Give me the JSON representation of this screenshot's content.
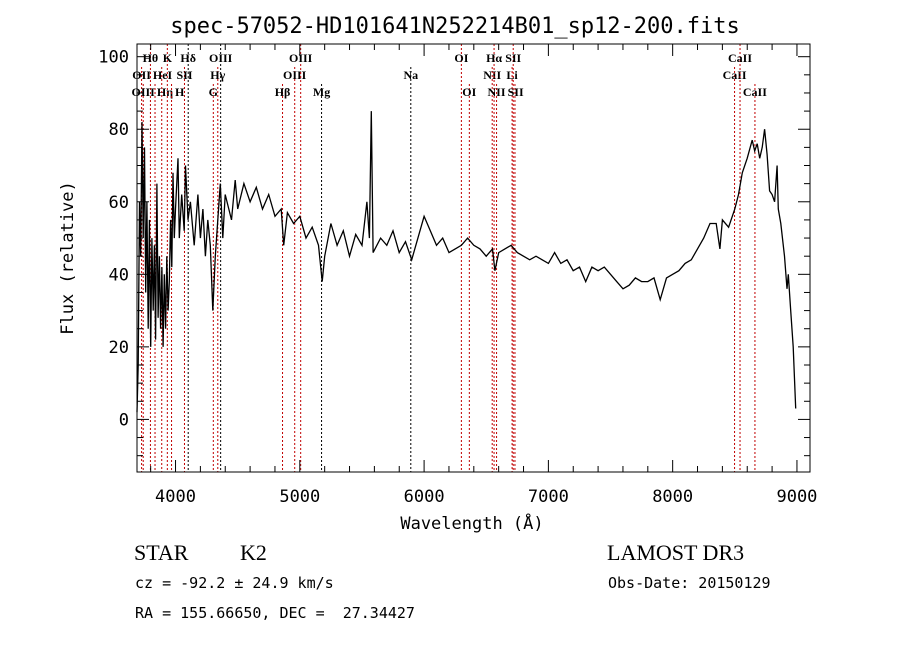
{
  "chart_data": {
    "type": "line",
    "title": "spec-57052-HD101641N252214B01_sp12-200.fits",
    "xlabel": "Wavelength (Å)",
    "ylabel": "Flux (relative)",
    "xlim": [
      3690,
      9105
    ],
    "ylim": [
      -14.5,
      103.5
    ],
    "xticks": [
      4000,
      5000,
      6000,
      7000,
      8000,
      9000
    ],
    "yticks": [
      0,
      20,
      40,
      60,
      80,
      100
    ],
    "grid": false,
    "series": [
      {
        "name": "spectrum",
        "color": "#000000",
        "points": [
          [
            3690,
            2
          ],
          [
            3700,
            15
          ],
          [
            3710,
            60
          ],
          [
            3720,
            45
          ],
          [
            3730,
            82
          ],
          [
            3740,
            50
          ],
          [
            3750,
            75
          ],
          [
            3760,
            35
          ],
          [
            3770,
            60
          ],
          [
            3780,
            25
          ],
          [
            3790,
            55
          ],
          [
            3800,
            20
          ],
          [
            3810,
            50
          ],
          [
            3820,
            30
          ],
          [
            3830,
            48
          ],
          [
            3840,
            22
          ],
          [
            3850,
            65
          ],
          [
            3860,
            28
          ],
          [
            3870,
            45
          ],
          [
            3880,
            25
          ],
          [
            3890,
            42
          ],
          [
            3900,
            20
          ],
          [
            3910,
            40
          ],
          [
            3920,
            25
          ],
          [
            3930,
            45
          ],
          [
            3940,
            30
          ],
          [
            3950,
            38
          ],
          [
            3960,
            55
          ],
          [
            3970,
            42
          ],
          [
            3980,
            68
          ],
          [
            3990,
            50
          ],
          [
            4000,
            58
          ],
          [
            4020,
            72
          ],
          [
            4030,
            50
          ],
          [
            4050,
            62
          ],
          [
            4070,
            52
          ],
          [
            4080,
            70
          ],
          [
            4100,
            55
          ],
          [
            4120,
            60
          ],
          [
            4150,
            48
          ],
          [
            4180,
            62
          ],
          [
            4200,
            50
          ],
          [
            4220,
            58
          ],
          [
            4240,
            45
          ],
          [
            4260,
            55
          ],
          [
            4280,
            48
          ],
          [
            4300,
            30
          ],
          [
            4320,
            45
          ],
          [
            4340,
            55
          ],
          [
            4360,
            65
          ],
          [
            4380,
            50
          ],
          [
            4400,
            62
          ],
          [
            4450,
            55
          ],
          [
            4480,
            66
          ],
          [
            4500,
            58
          ],
          [
            4550,
            65
          ],
          [
            4600,
            60
          ],
          [
            4650,
            64
          ],
          [
            4700,
            58
          ],
          [
            4750,
            62
          ],
          [
            4800,
            56
          ],
          [
            4850,
            58
          ],
          [
            4870,
            48
          ],
          [
            4900,
            57
          ],
          [
            4950,
            54
          ],
          [
            5000,
            56
          ],
          [
            5050,
            50
          ],
          [
            5100,
            53
          ],
          [
            5150,
            48
          ],
          [
            5180,
            38
          ],
          [
            5200,
            45
          ],
          [
            5250,
            54
          ],
          [
            5300,
            48
          ],
          [
            5350,
            52
          ],
          [
            5400,
            45
          ],
          [
            5450,
            51
          ],
          [
            5500,
            48
          ],
          [
            5540,
            60
          ],
          [
            5560,
            50
          ],
          [
            5575,
            85
          ],
          [
            5590,
            46
          ],
          [
            5650,
            50
          ],
          [
            5700,
            48
          ],
          [
            5750,
            52
          ],
          [
            5800,
            46
          ],
          [
            5850,
            49
          ],
          [
            5900,
            44
          ],
          [
            5950,
            50
          ],
          [
            6000,
            56
          ],
          [
            6050,
            52
          ],
          [
            6100,
            48
          ],
          [
            6150,
            50
          ],
          [
            6200,
            46
          ],
          [
            6250,
            47
          ],
          [
            6300,
            48
          ],
          [
            6350,
            50
          ],
          [
            6400,
            48
          ],
          [
            6450,
            47
          ],
          [
            6500,
            45
          ],
          [
            6550,
            47
          ],
          [
            6570,
            41
          ],
          [
            6600,
            46
          ],
          [
            6650,
            47
          ],
          [
            6700,
            48
          ],
          [
            6750,
            46
          ],
          [
            6800,
            45
          ],
          [
            6850,
            44
          ],
          [
            6900,
            45
          ],
          [
            6950,
            44
          ],
          [
            7000,
            43
          ],
          [
            7050,
            46
          ],
          [
            7100,
            43
          ],
          [
            7150,
            44
          ],
          [
            7200,
            41
          ],
          [
            7250,
            42
          ],
          [
            7300,
            38
          ],
          [
            7350,
            42
          ],
          [
            7400,
            41
          ],
          [
            7450,
            42
          ],
          [
            7500,
            40
          ],
          [
            7550,
            38
          ],
          [
            7600,
            36
          ],
          [
            7650,
            37
          ],
          [
            7700,
            39
          ],
          [
            7750,
            38
          ],
          [
            7800,
            38
          ],
          [
            7850,
            39
          ],
          [
            7900,
            33
          ],
          [
            7950,
            39
          ],
          [
            8000,
            40
          ],
          [
            8050,
            41
          ],
          [
            8100,
            43
          ],
          [
            8150,
            44
          ],
          [
            8200,
            47
          ],
          [
            8250,
            50
          ],
          [
            8300,
            54
          ],
          [
            8350,
            54
          ],
          [
            8380,
            47
          ],
          [
            8400,
            55
          ],
          [
            8450,
            53
          ],
          [
            8500,
            58
          ],
          [
            8530,
            62
          ],
          [
            8560,
            68
          ],
          [
            8600,
            72
          ],
          [
            8640,
            77
          ],
          [
            8660,
            74
          ],
          [
            8680,
            76
          ],
          [
            8700,
            72
          ],
          [
            8720,
            75
          ],
          [
            8740,
            80
          ],
          [
            8760,
            73
          ],
          [
            8780,
            63
          ],
          [
            8800,
            62
          ],
          [
            8820,
            60
          ],
          [
            8840,
            70
          ],
          [
            8850,
            58
          ],
          [
            8870,
            54
          ],
          [
            8900,
            45
          ],
          [
            8920,
            36
          ],
          [
            8930,
            40
          ],
          [
            8950,
            30
          ],
          [
            8970,
            20
          ],
          [
            8990,
            3
          ]
        ]
      }
    ],
    "lines": [
      {
        "label": "OII",
        "wavelength": 3727,
        "row": 2,
        "color": "#c00000"
      },
      {
        "label": "OIII",
        "wavelength": 3740,
        "row": 3,
        "color": "#c00000"
      },
      {
        "label": "Hθ",
        "wavelength": 3798,
        "row": 1,
        "color": "#c00000"
      },
      {
        "label": "Hη",
        "wavelength": 3835,
        "row": 3,
        "color": "#c00000"
      },
      {
        "label": "HeI",
        "wavelength": 3889,
        "row": 2,
        "color": "#c00000"
      },
      {
        "label": "K",
        "wavelength": 3934,
        "row": 1,
        "color": "#c00000"
      },
      {
        "label": "H",
        "wavelength": 3968,
        "row": 3,
        "color": "#c00000"
      },
      {
        "label": "SII",
        "wavelength": 4072,
        "row": 2,
        "color": "#c00000"
      },
      {
        "label": "Hδ",
        "wavelength": 4102,
        "row": 1,
        "color": "#000000"
      },
      {
        "label": "G",
        "wavelength": 4304,
        "row": 3,
        "color": "#c00000"
      },
      {
        "label": "Hγ",
        "wavelength": 4340,
        "row": 2,
        "color": "#c00000"
      },
      {
        "label": "OIII",
        "wavelength": 4363,
        "row": 1,
        "color": "#000000"
      },
      {
        "label": "Hβ",
        "wavelength": 4861,
        "row": 3,
        "color": "#c00000"
      },
      {
        "label": "OIII",
        "wavelength": 4959,
        "row": 2,
        "color": "#c00000"
      },
      {
        "label": "OIII",
        "wavelength": 5007,
        "row": 1,
        "color": "#c00000"
      },
      {
        "label": "Mg",
        "wavelength": 5175,
        "row": 3,
        "color": "#000000"
      },
      {
        "label": "Na",
        "wavelength": 5893,
        "row": 2,
        "color": "#000000"
      },
      {
        "label": "OI",
        "wavelength": 6300,
        "row": 1,
        "color": "#c00000"
      },
      {
        "label": "OI",
        "wavelength": 6364,
        "row": 3,
        "color": "#c00000"
      },
      {
        "label": "NII",
        "wavelength": 6548,
        "row": 2,
        "color": "#c00000"
      },
      {
        "label": "Hα",
        "wavelength": 6563,
        "row": 1,
        "color": "#c00000"
      },
      {
        "label": "NII",
        "wavelength": 6583,
        "row": 3,
        "color": "#c00000"
      },
      {
        "label": "Li",
        "wavelength": 6708,
        "row": 2,
        "color": "#c00000"
      },
      {
        "label": "SII",
        "wavelength": 6717,
        "row": 1,
        "color": "#c00000"
      },
      {
        "label": "SII",
        "wavelength": 6731,
        "row": 3,
        "color": "#c00000"
      },
      {
        "label": "CaII",
        "wavelength": 8498,
        "row": 2,
        "color": "#c00000"
      },
      {
        "label": "CaII",
        "wavelength": 8542,
        "row": 1,
        "color": "#c00000"
      },
      {
        "label": "CaII",
        "wavelength": 8662,
        "row": 3,
        "color": "#c00000"
      }
    ]
  },
  "info": {
    "object_class": "STAR",
    "subclass": "K2",
    "survey": "LAMOST DR3",
    "cz": "cz = -92.2 ± 24.9 km/s",
    "obs_date": "Obs-Date: 20150129",
    "coords": "RA = 155.66650, DEC =  27.34427"
  }
}
